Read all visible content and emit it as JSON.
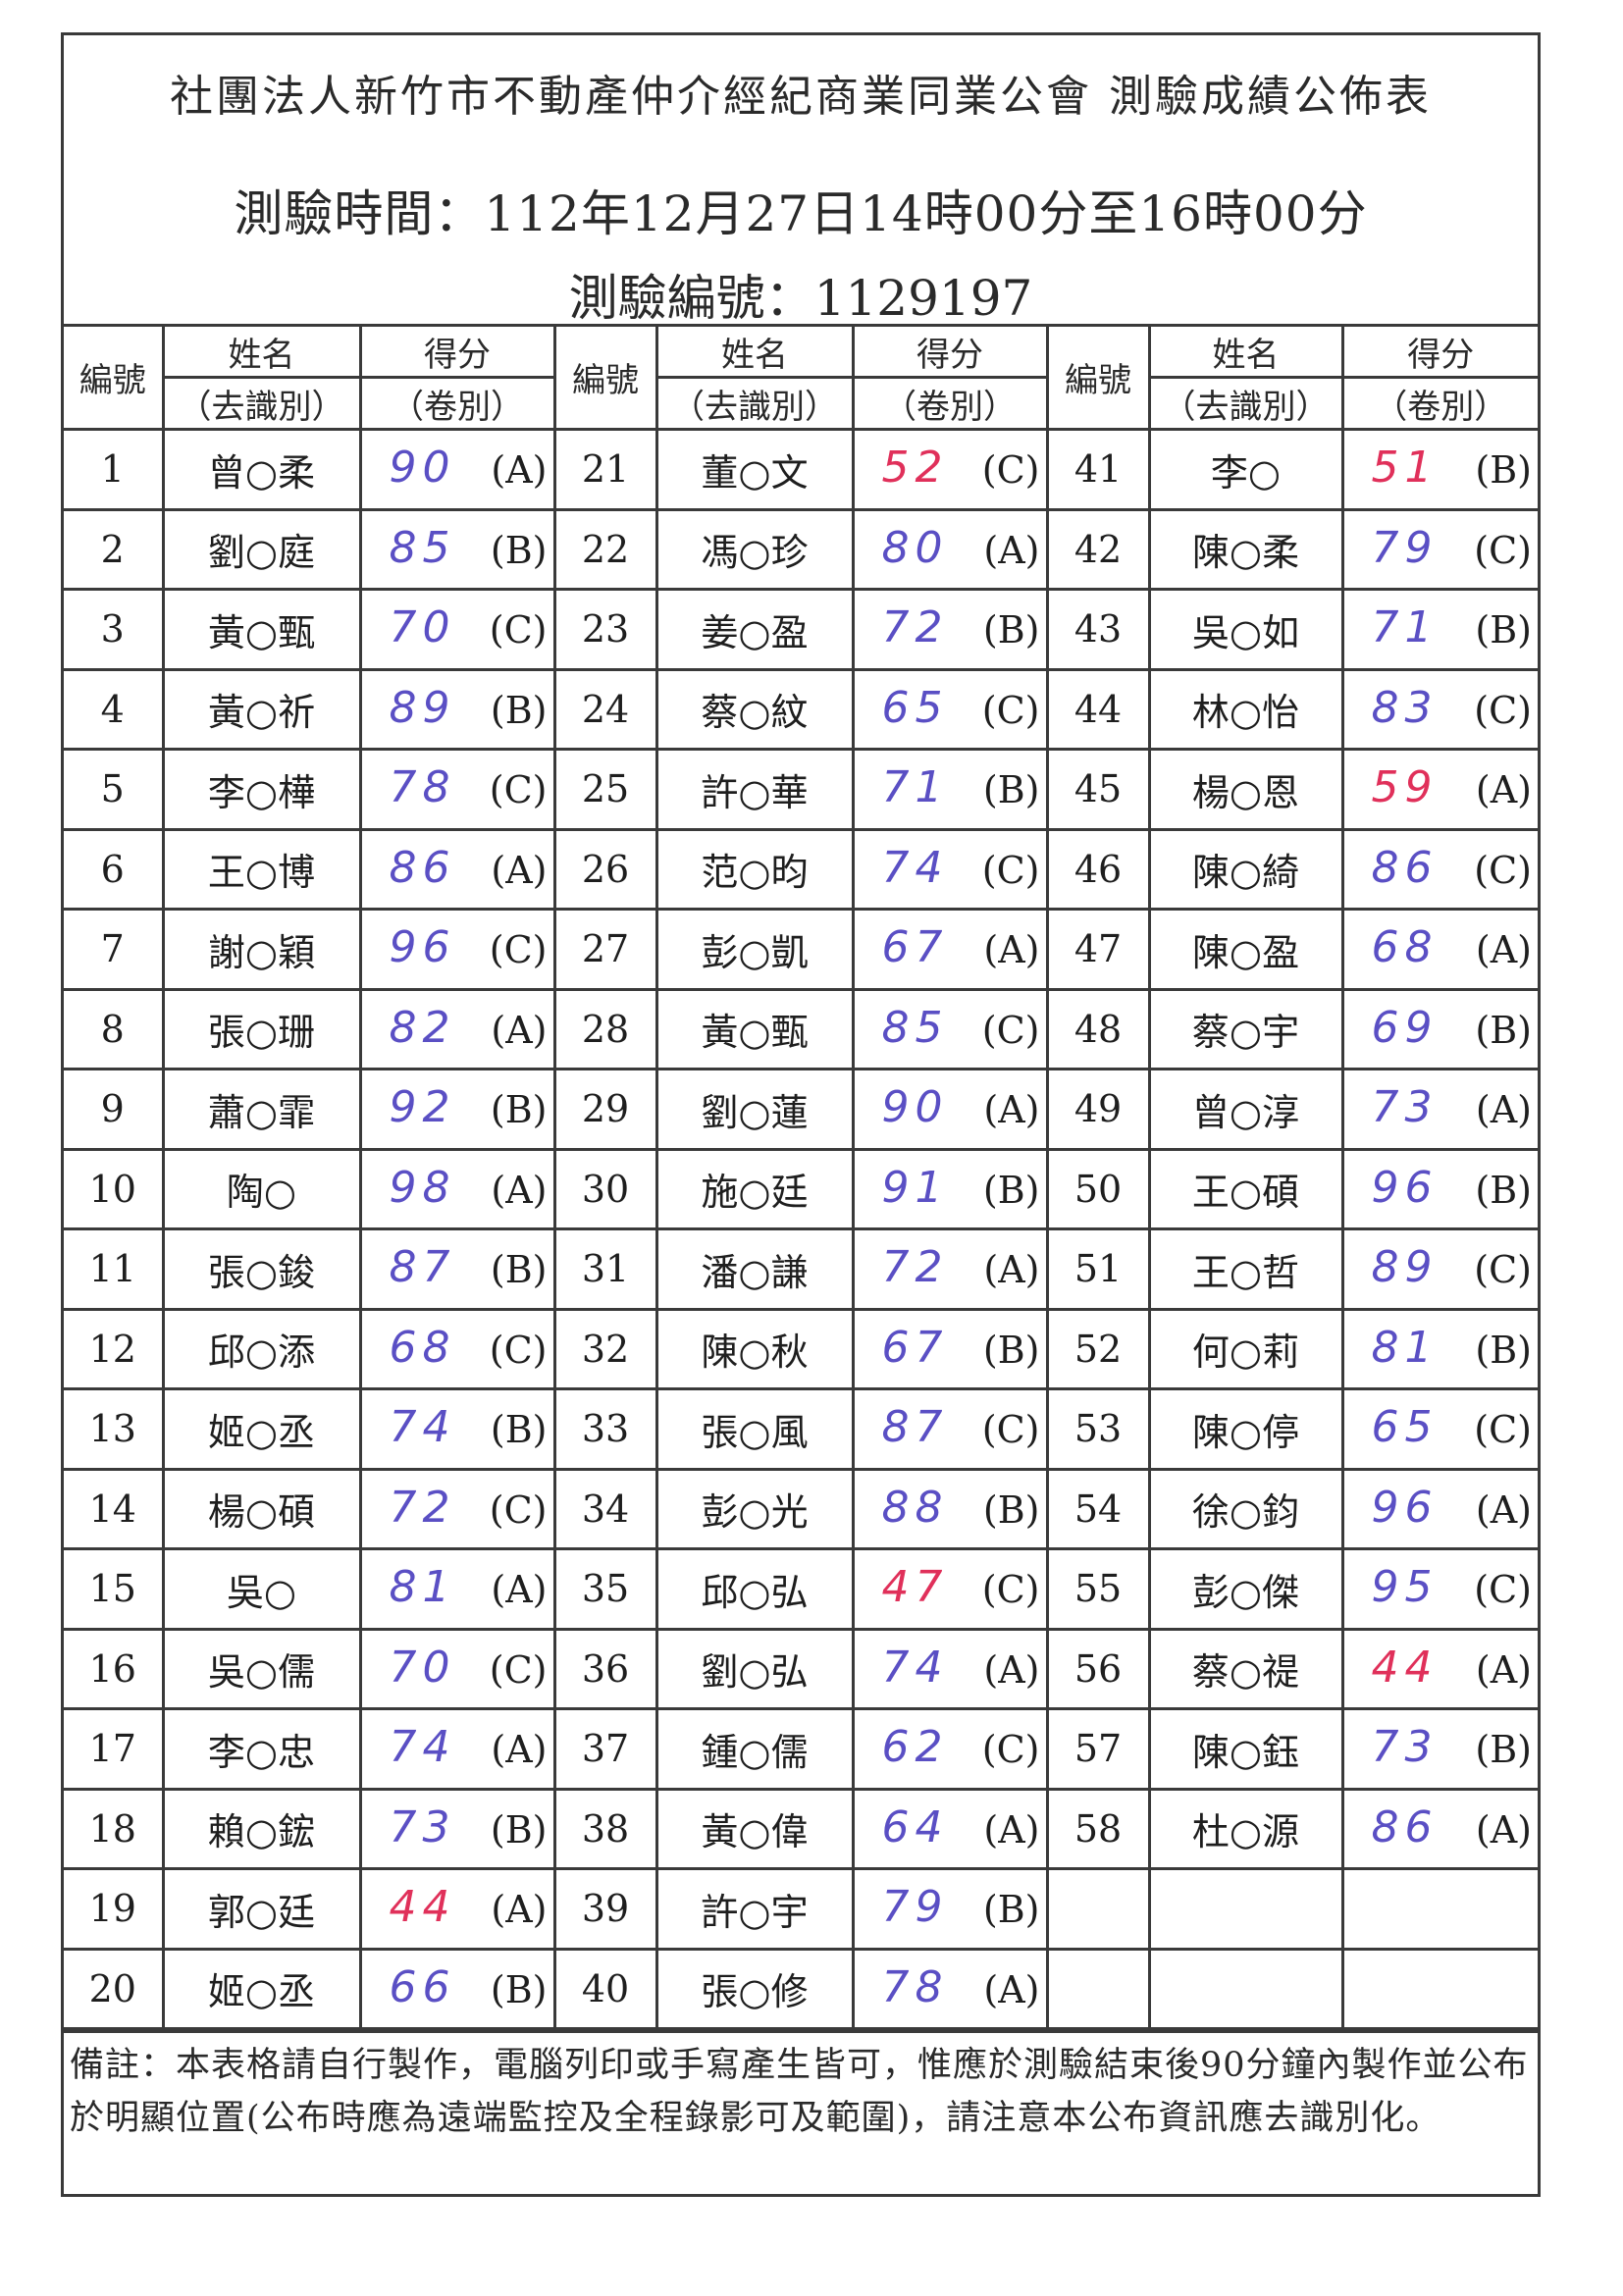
{
  "header": {
    "title": "社團法人新竹市不動產仲介經紀商業同業公會 測驗成績公佈表",
    "exam_time": "測驗時間：112年12月27日14時00分至16時00分",
    "exam_code": "測驗編號：1129197"
  },
  "columns": {
    "number": "編號",
    "name": "姓名",
    "name_sub": "（去識別）",
    "score": "得分",
    "score_sub": "（卷別）"
  },
  "colors": {
    "pass": "#5a4fc4",
    "fail": "#e0305a"
  },
  "pass_mark": 60,
  "rows": [
    {
      "no": "1",
      "name": "曾○柔",
      "score": "90",
      "paper": "(A)"
    },
    {
      "no": "2",
      "name": "劉○庭",
      "score": "85",
      "paper": "(B)"
    },
    {
      "no": "3",
      "name": "黃○甄",
      "score": "70",
      "paper": "(C)"
    },
    {
      "no": "4",
      "name": "黃○祈",
      "score": "89",
      "paper": "(B)"
    },
    {
      "no": "5",
      "name": "李○樺",
      "score": "78",
      "paper": "(C)"
    },
    {
      "no": "6",
      "name": "王○博",
      "score": "86",
      "paper": "(A)"
    },
    {
      "no": "7",
      "name": "謝○穎",
      "score": "96",
      "paper": "(C)"
    },
    {
      "no": "8",
      "name": "張○珊",
      "score": "82",
      "paper": "(A)"
    },
    {
      "no": "9",
      "name": "蕭○霏",
      "score": "92",
      "paper": "(B)"
    },
    {
      "no": "10",
      "name": "陶○",
      "score": "98",
      "paper": "(A)"
    },
    {
      "no": "11",
      "name": "張○鋑",
      "score": "87",
      "paper": "(B)"
    },
    {
      "no": "12",
      "name": "邱○添",
      "score": "68",
      "paper": "(C)"
    },
    {
      "no": "13",
      "name": "姬○丞",
      "score": "74",
      "paper": "(B)"
    },
    {
      "no": "14",
      "name": "楊○碩",
      "score": "72",
      "paper": "(C)"
    },
    {
      "no": "15",
      "name": "吳○",
      "score": "81",
      "paper": "(A)"
    },
    {
      "no": "16",
      "name": "吳○儒",
      "score": "70",
      "paper": "(C)"
    },
    {
      "no": "17",
      "name": "李○忠",
      "score": "74",
      "paper": "(A)"
    },
    {
      "no": "18",
      "name": "賴○鋐",
      "score": "73",
      "paper": "(B)"
    },
    {
      "no": "19",
      "name": "郭○廷",
      "score": "44",
      "paper": "(A)"
    },
    {
      "no": "20",
      "name": "姬○丞",
      "score": "66",
      "paper": "(B)"
    },
    {
      "no": "21",
      "name": "董○文",
      "score": "52",
      "paper": "(C)"
    },
    {
      "no": "22",
      "name": "馮○珍",
      "score": "80",
      "paper": "(A)"
    },
    {
      "no": "23",
      "name": "姜○盈",
      "score": "72",
      "paper": "(B)"
    },
    {
      "no": "24",
      "name": "蔡○紋",
      "score": "65",
      "paper": "(C)"
    },
    {
      "no": "25",
      "name": "許○華",
      "score": "71",
      "paper": "(B)"
    },
    {
      "no": "26",
      "name": "范○昀",
      "score": "74",
      "paper": "(C)"
    },
    {
      "no": "27",
      "name": "彭○凱",
      "score": "67",
      "paper": "(A)"
    },
    {
      "no": "28",
      "name": "黃○甄",
      "score": "85",
      "paper": "(C)"
    },
    {
      "no": "29",
      "name": "劉○蓮",
      "score": "90",
      "paper": "(A)"
    },
    {
      "no": "30",
      "name": "施○廷",
      "score": "91",
      "paper": "(B)"
    },
    {
      "no": "31",
      "name": "潘○謙",
      "score": "72",
      "paper": "(A)"
    },
    {
      "no": "32",
      "name": "陳○秋",
      "score": "67",
      "paper": "(B)"
    },
    {
      "no": "33",
      "name": "張○風",
      "score": "87",
      "paper": "(C)"
    },
    {
      "no": "34",
      "name": "彭○光",
      "score": "88",
      "paper": "(B)"
    },
    {
      "no": "35",
      "name": "邱○弘",
      "score": "47",
      "paper": "(C)"
    },
    {
      "no": "36",
      "name": "劉○弘",
      "score": "74",
      "paper": "(A)"
    },
    {
      "no": "37",
      "name": "鍾○儒",
      "score": "62",
      "paper": "(C)"
    },
    {
      "no": "38",
      "name": "黃○偉",
      "score": "64",
      "paper": "(A)"
    },
    {
      "no": "39",
      "name": "許○宇",
      "score": "79",
      "paper": "(B)"
    },
    {
      "no": "40",
      "name": "張○修",
      "score": "78",
      "paper": "(A)"
    },
    {
      "no": "41",
      "name": "李○",
      "score": "51",
      "paper": "(B)"
    },
    {
      "no": "42",
      "name": "陳○柔",
      "score": "79",
      "paper": "(C)"
    },
    {
      "no": "43",
      "name": "吳○如",
      "score": "71",
      "paper": "(B)"
    },
    {
      "no": "44",
      "name": "林○怡",
      "score": "83",
      "paper": "(C)"
    },
    {
      "no": "45",
      "name": "楊○恩",
      "score": "59",
      "paper": "(A)"
    },
    {
      "no": "46",
      "name": "陳○綺",
      "score": "86",
      "paper": "(C)"
    },
    {
      "no": "47",
      "name": "陳○盈",
      "score": "68",
      "paper": "(A)"
    },
    {
      "no": "48",
      "name": "蔡○宇",
      "score": "69",
      "paper": "(B)"
    },
    {
      "no": "49",
      "name": "曾○淳",
      "score": "73",
      "paper": "(A)"
    },
    {
      "no": "50",
      "name": "王○碩",
      "score": "96",
      "paper": "(B)"
    },
    {
      "no": "51",
      "name": "王○哲",
      "score": "89",
      "paper": "(C)"
    },
    {
      "no": "52",
      "name": "何○莉",
      "score": "81",
      "paper": "(B)"
    },
    {
      "no": "53",
      "name": "陳○停",
      "score": "65",
      "paper": "(C)"
    },
    {
      "no": "54",
      "name": "徐○鈞",
      "score": "96",
      "paper": "(A)"
    },
    {
      "no": "55",
      "name": "彭○傑",
      "score": "95",
      "paper": "(C)"
    },
    {
      "no": "56",
      "name": "蔡○禔",
      "score": "44",
      "paper": "(A)"
    },
    {
      "no": "57",
      "name": "陳○鈺",
      "score": "73",
      "paper": "(B)"
    },
    {
      "no": "58",
      "name": "杜○源",
      "score": "86",
      "paper": "(A)"
    }
  ],
  "note": "備註：本表格請自行製作，電腦列印或手寫產生皆可，惟應於測驗結束後90分鐘內製作並公布於明顯位置(公布時應為遠端監控及全程錄影可及範圍)，請注意本公布資訊應去識別化。"
}
